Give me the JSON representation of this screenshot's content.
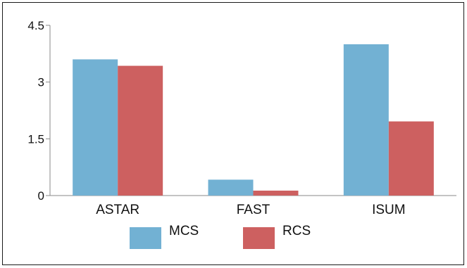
{
  "chart_data": {
    "type": "bar",
    "categories": [
      "ASTAR",
      "FAST",
      "ISUM"
    ],
    "series": [
      {
        "name": "MCS",
        "values": [
          3.6,
          0.42,
          4.0
        ],
        "color": "#72b1d3"
      },
      {
        "name": "RCS",
        "values": [
          3.43,
          0.13,
          1.96
        ],
        "color": "#cd6060"
      }
    ],
    "yticks": [
      "0",
      "1.5",
      "3",
      "4.5"
    ],
    "ylim": [
      0,
      4.5
    ],
    "grid": false,
    "legend_position": "bottom"
  }
}
